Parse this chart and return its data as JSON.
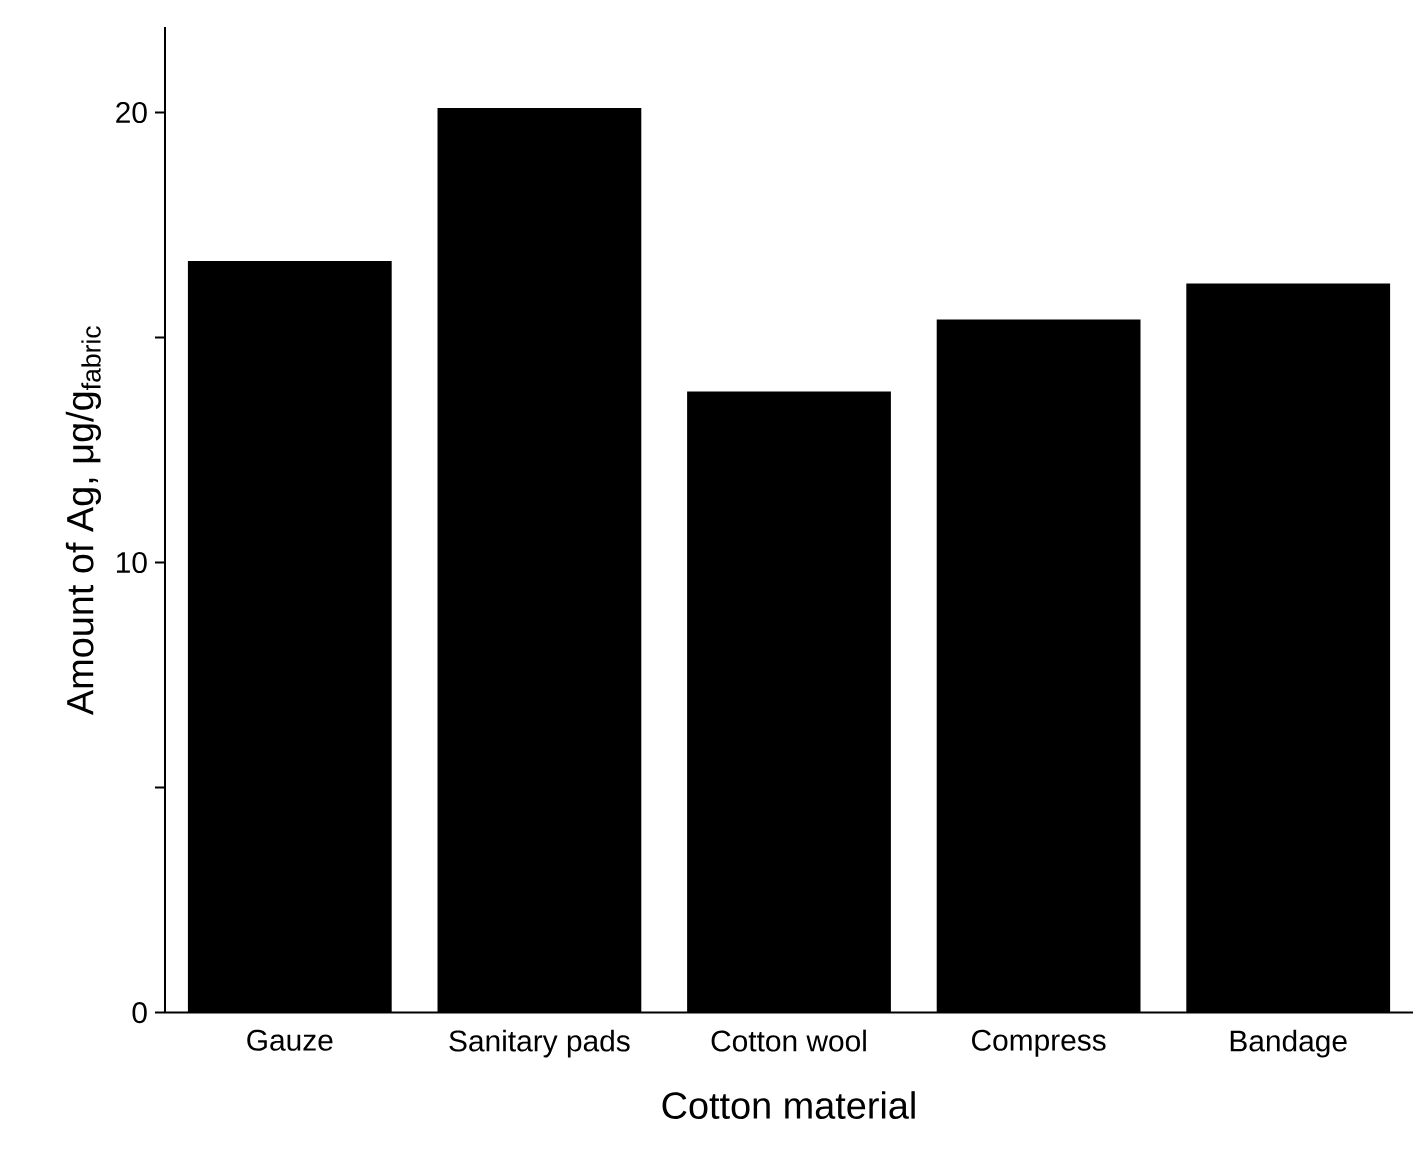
{
  "chart_data": {
    "type": "bar",
    "xlabel": "Cotton material",
    "ylabel": "Amount of Ag, μg/g$_{fabric}$",
    "categories": [
      "Gauze",
      "Sanitary pads",
      "Cotton wool",
      "Compress",
      "Bandage"
    ],
    "values": [
      16.7,
      20.1,
      13.8,
      15.4,
      16.2
    ],
    "color": "#000000",
    "ylim": [
      0,
      21.9
    ],
    "yticks": [
      0,
      {
        "value": 5,
        "label": null
      },
      10,
      {
        "value": 15,
        "label": null
      },
      20
    ],
    "grid": false
  }
}
